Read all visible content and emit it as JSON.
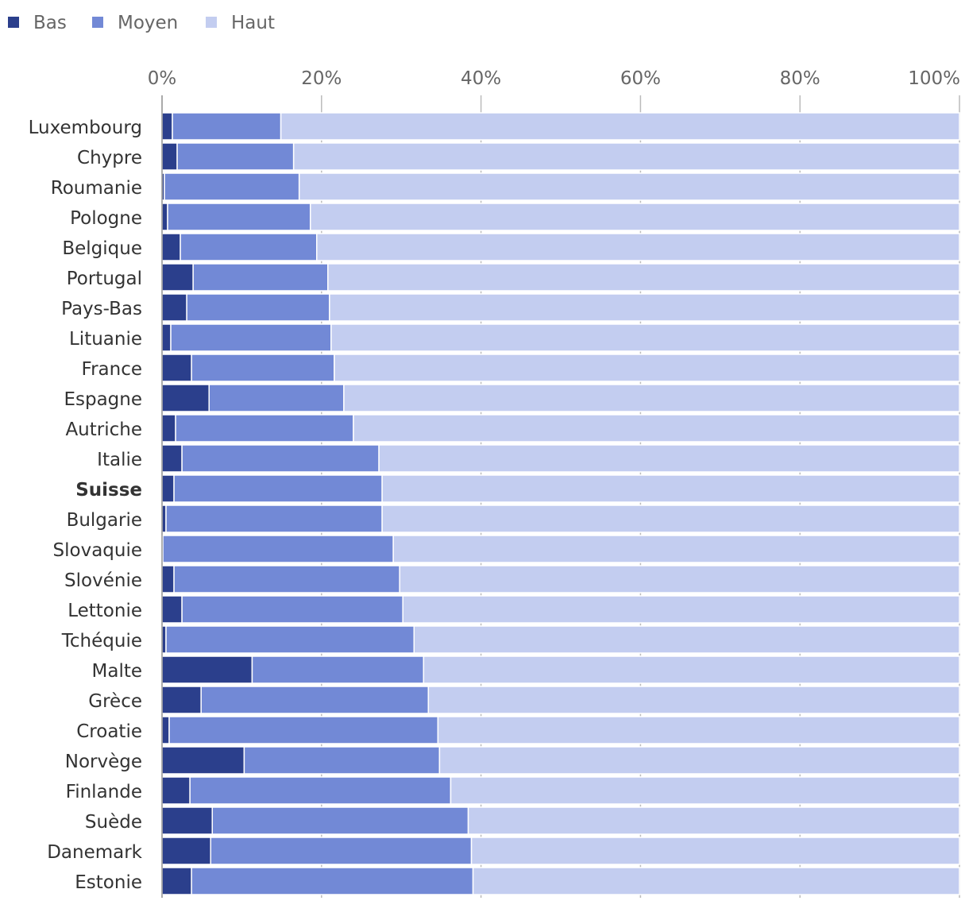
{
  "chart_data": {
    "type": "bar",
    "orientation": "horizontal",
    "stacked": "percent",
    "legend_position": "top-left",
    "grid": true,
    "xlim": [
      0,
      100
    ],
    "x_ticks": [
      "0%",
      "20%",
      "40%",
      "60%",
      "80%",
      "100%"
    ],
    "x_tick_values": [
      0,
      20,
      40,
      60,
      80,
      100
    ],
    "highlight": "Suisse",
    "colors": {
      "Bas": "#2b3f8c",
      "Moyen": "#7289d6",
      "Haut": "#c3cdf0"
    },
    "categories": [
      "Luxembourg",
      "Chypre",
      "Roumanie",
      "Pologne",
      "Belgique",
      "Portugal",
      "Pays-Bas",
      "Lituanie",
      "France",
      "Espagne",
      "Autriche",
      "Italie",
      "Suisse",
      "Bulgarie",
      "Slovaquie",
      "Slovénie",
      "Lettonie",
      "Tchéquie",
      "Malte",
      "Grèce",
      "Croatie",
      "Norvège",
      "Finlande",
      "Suède",
      "Danemark",
      "Estonie"
    ],
    "series": [
      {
        "name": "Bas",
        "values": [
          1.3,
          1.9,
          0.3,
          0.7,
          2.3,
          3.9,
          3.1,
          1.1,
          3.7,
          5.9,
          1.7,
          2.5,
          1.5,
          0.5,
          0.1,
          1.5,
          2.5,
          0.5,
          11.3,
          4.9,
          0.9,
          10.3,
          3.5,
          6.3,
          6.1,
          3.7
        ]
      },
      {
        "name": "Moyen",
        "values": [
          13.6,
          14.6,
          16.9,
          17.9,
          17.1,
          16.9,
          17.9,
          20.1,
          17.9,
          16.9,
          22.3,
          24.7,
          26.1,
          27.1,
          28.9,
          28.3,
          27.7,
          31.1,
          21.5,
          28.5,
          33.7,
          24.5,
          32.7,
          32.1,
          32.7,
          35.3
        ]
      },
      {
        "name": "Haut",
        "values": [
          85.1,
          83.5,
          82.8,
          81.4,
          80.6,
          79.2,
          79.0,
          78.8,
          78.4,
          77.2,
          76.0,
          72.8,
          72.4,
          72.4,
          71.0,
          70.2,
          69.8,
          68.4,
          67.2,
          66.6,
          65.4,
          65.2,
          63.8,
          61.6,
          61.2,
          61.0
        ]
      }
    ]
  }
}
